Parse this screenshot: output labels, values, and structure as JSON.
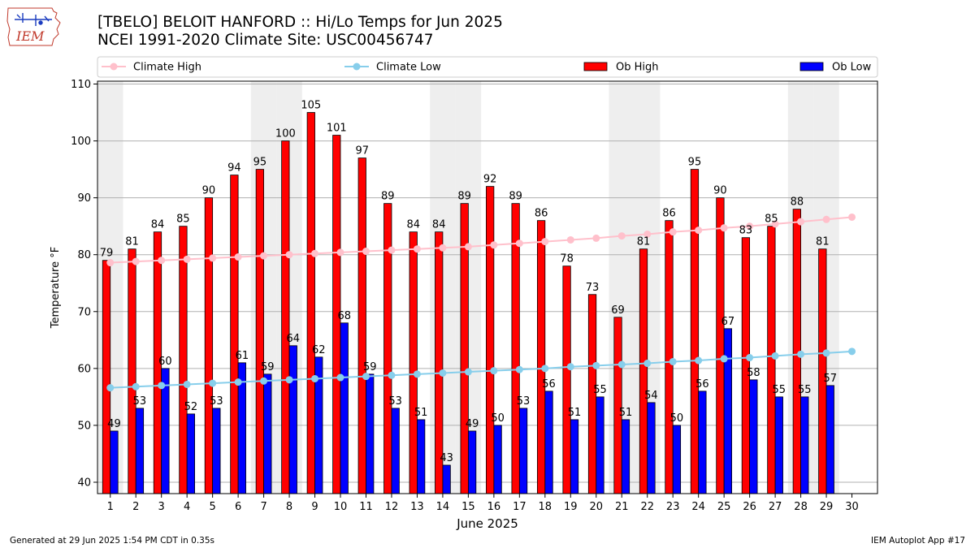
{
  "header": {
    "title_line1": "[TBELO] BELOIT HANFORD  :: Hi/Lo Temps for Jun 2025",
    "title_line2": "NCEI 1991-2020 Climate Site: USC00456747"
  },
  "logo": {
    "text": "IEM",
    "icon": "iem-iowa-logo-icon"
  },
  "footer": {
    "left": "Generated at 29 Jun 2025 1:54 PM CDT in 0.35s",
    "right": "IEM Autoplot App #17"
  },
  "colors": {
    "ob_high": "#ff0000",
    "ob_low": "#0000ff",
    "climate_high": "#ffc0cb",
    "climate_low": "#87ceeb",
    "weekend_band": "#eeeeee",
    "grid": "#b0b0b0"
  },
  "chart_data": {
    "type": "bar",
    "xlabel": "June 2025",
    "ylabel": "Temperature °F",
    "ylim": [
      38,
      110.5
    ],
    "yticks": [
      40,
      50,
      60,
      70,
      80,
      90,
      100,
      110
    ],
    "grid": "horizontal",
    "legend_position": "top",
    "categories": [
      "1",
      "2",
      "3",
      "4",
      "5",
      "6",
      "7",
      "8",
      "9",
      "10",
      "11",
      "12",
      "13",
      "14",
      "15",
      "16",
      "17",
      "18",
      "19",
      "20",
      "21",
      "22",
      "23",
      "24",
      "25",
      "26",
      "27",
      "28",
      "29",
      "30"
    ],
    "weekend_days": [
      1,
      7,
      8,
      14,
      15,
      21,
      22,
      28,
      29
    ],
    "series": [
      {
        "name": "Ob High",
        "kind": "bar",
        "values": [
          79,
          81,
          84,
          85,
          90,
          94,
          95,
          100,
          105,
          101,
          97,
          89,
          84,
          84,
          89,
          92,
          89,
          86,
          78,
          73,
          69,
          81,
          86,
          95,
          90,
          83,
          85,
          88,
          81,
          null
        ]
      },
      {
        "name": "Ob Low",
        "kind": "bar",
        "values": [
          49,
          53,
          60,
          52,
          53,
          61,
          59,
          64,
          62,
          68,
          59,
          53,
          51,
          43,
          49,
          50,
          53,
          56,
          51,
          55,
          51,
          54,
          50,
          56,
          67,
          58,
          55,
          55,
          57,
          null
        ]
      },
      {
        "name": "Climate High",
        "kind": "line",
        "values": [
          78.6,
          78.8,
          79.0,
          79.2,
          79.4,
          79.6,
          79.8,
          80.0,
          80.2,
          80.4,
          80.6,
          80.8,
          81.0,
          81.2,
          81.4,
          81.7,
          82.0,
          82.3,
          82.6,
          82.9,
          83.3,
          83.6,
          84.0,
          84.3,
          84.7,
          85.0,
          85.4,
          85.8,
          86.2,
          86.6
        ]
      },
      {
        "name": "Climate Low",
        "kind": "line",
        "values": [
          56.6,
          56.8,
          57.0,
          57.2,
          57.4,
          57.6,
          57.8,
          58.0,
          58.2,
          58.4,
          58.6,
          58.8,
          59.0,
          59.2,
          59.4,
          59.6,
          59.8,
          60.0,
          60.3,
          60.5,
          60.7,
          60.9,
          61.2,
          61.4,
          61.7,
          61.9,
          62.2,
          62.5,
          62.7,
          63.0
        ]
      }
    ]
  }
}
